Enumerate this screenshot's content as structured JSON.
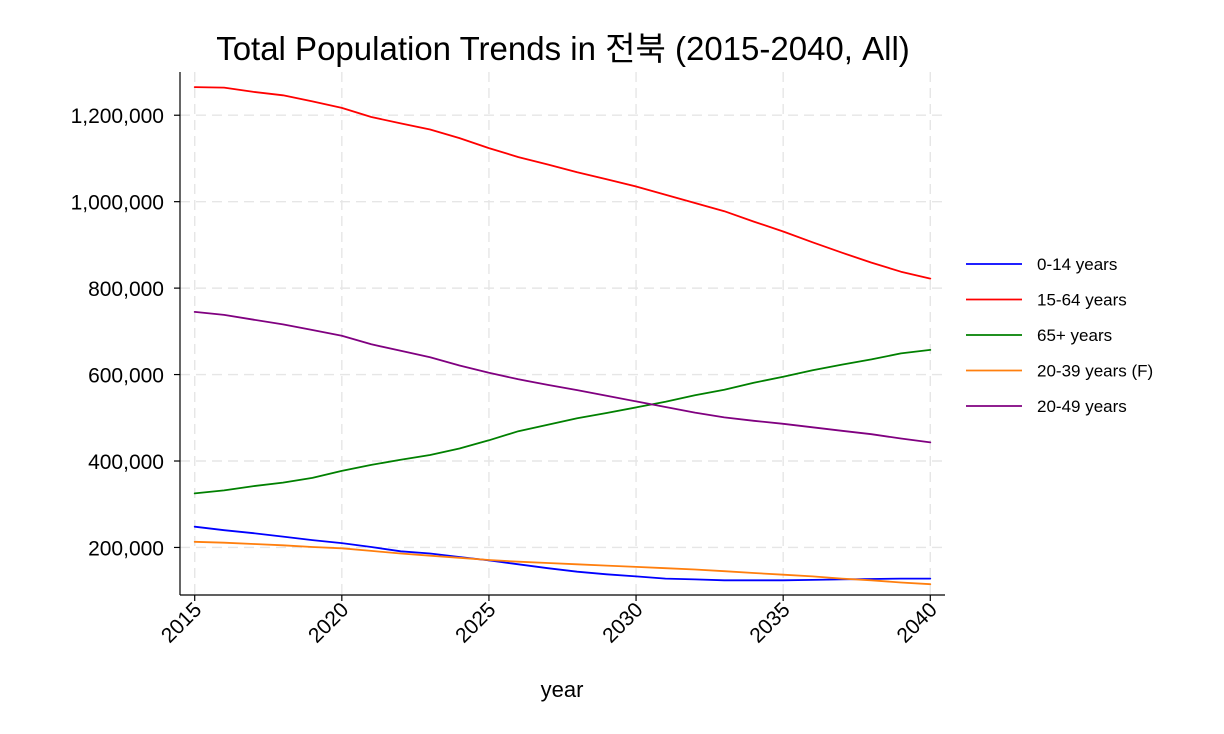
{
  "chart_data": {
    "type": "line",
    "title": "Total Population Trends in 전북 (2015-2040, All)",
    "xlabel": "year",
    "ylabel": "",
    "xlim": [
      2014.5,
      2040.5
    ],
    "ylim": [
      90000,
      1300000
    ],
    "x_ticks": [
      2015,
      2020,
      2025,
      2030,
      2035,
      2040
    ],
    "y_ticks": [
      200000,
      400000,
      600000,
      800000,
      1000000,
      1200000
    ],
    "y_tick_labels": [
      "200,000",
      "400,000",
      "600,000",
      "800,000",
      "1,000,000",
      "1,200,000"
    ],
    "grid": true,
    "legend_position": "right",
    "x": [
      2015,
      2016,
      2017,
      2018,
      2019,
      2020,
      2021,
      2022,
      2023,
      2024,
      2025,
      2026,
      2027,
      2028,
      2029,
      2030,
      2031,
      2032,
      2033,
      2034,
      2035,
      2036,
      2037,
      2038,
      2039,
      2040
    ],
    "series": [
      {
        "name": "0-14 years",
        "color": "#0000ff",
        "values": [
          248000,
          240000,
          233000,
          225000,
          217000,
          210000,
          201000,
          191000,
          186000,
          178000,
          170000,
          161000,
          152000,
          144000,
          138000,
          133000,
          128000,
          126000,
          124000,
          124000,
          124000,
          125000,
          126000,
          127000,
          128000,
          128000
        ]
      },
      {
        "name": "15-64 years",
        "color": "#ff0000",
        "values": [
          1265000,
          1264000,
          1254000,
          1246000,
          1232000,
          1217000,
          1196000,
          1181000,
          1167000,
          1147000,
          1124000,
          1103000,
          1086000,
          1068000,
          1052000,
          1035000,
          1016000,
          997000,
          978000,
          954000,
          931000,
          906000,
          882000,
          859000,
          838000,
          822000
        ]
      },
      {
        "name": "65+ years",
        "color": "#008000",
        "values": [
          325000,
          332000,
          342000,
          350000,
          361000,
          377000,
          391000,
          403000,
          414000,
          429000,
          448000,
          469000,
          484000,
          499000,
          511000,
          524000,
          537000,
          552000,
          565000,
          581000,
          595000,
          610000,
          623000,
          635000,
          649000,
          657000
        ]
      },
      {
        "name": "20-39 years (F)",
        "color": "#ff7f0e",
        "values": [
          213000,
          211000,
          208000,
          205000,
          201000,
          198000,
          192000,
          186000,
          181000,
          176000,
          171000,
          167000,
          164000,
          161000,
          158000,
          155000,
          152000,
          149000,
          145000,
          141000,
          137000,
          133000,
          128000,
          124000,
          119000,
          115000
        ]
      },
      {
        "name": "20-49 years",
        "color": "#800080",
        "values": [
          745000,
          738000,
          727000,
          716000,
          703000,
          690000,
          670000,
          655000,
          640000,
          621000,
          604000,
          589000,
          576000,
          564000,
          551000,
          538000,
          525000,
          512000,
          501000,
          493000,
          486000,
          478000,
          470000,
          462000,
          452000,
          443000
        ]
      }
    ]
  }
}
